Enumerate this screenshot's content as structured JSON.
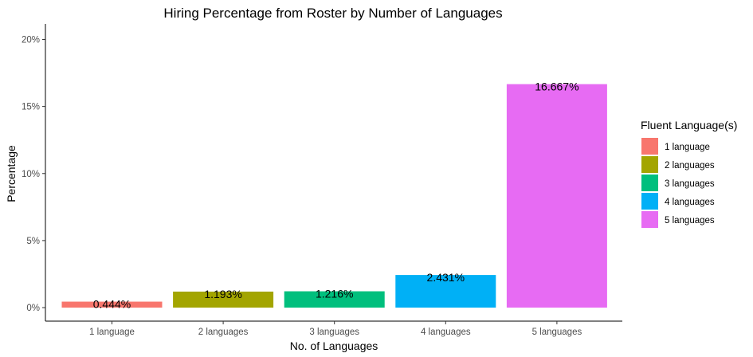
{
  "chart_data": {
    "type": "bar",
    "title": "Hiring Percentage from Roster by Number of Languages",
    "xlabel": "No. of Languages",
    "ylabel": "Percentage",
    "categories": [
      "1 language",
      "2 languages",
      "3 languages",
      "4 languages",
      "5 languages"
    ],
    "values": [
      0.444,
      1.193,
      1.216,
      2.431,
      16.667
    ],
    "data_labels": [
      "0.444%",
      "1.193%",
      "1.216%",
      "2.431%",
      "16.667%"
    ],
    "colors": [
      "#F8766D",
      "#A3A500",
      "#00BF7D",
      "#00B0F6",
      "#E76BF3"
    ],
    "ylim": [
      0,
      20
    ],
    "yticks": [
      0,
      5,
      10,
      15,
      20
    ],
    "ytick_labels": [
      "0%",
      "5%",
      "10%",
      "15%",
      "20%"
    ],
    "grid": false,
    "legend": {
      "title": "Fluent Language(s)",
      "position": "right",
      "entries": [
        "1 language",
        "2 languages",
        "3 languages",
        "4 languages",
        "5 languages"
      ]
    }
  }
}
